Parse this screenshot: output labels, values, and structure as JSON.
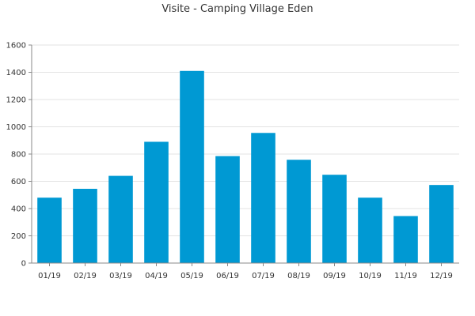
{
  "chart_data": {
    "type": "bar",
    "title": "Visite - Camping Village Eden",
    "categories": [
      "01/19",
      "02/19",
      "03/19",
      "04/19",
      "05/19",
      "06/19",
      "07/19",
      "08/19",
      "09/19",
      "10/19",
      "11/19",
      "12/19"
    ],
    "values": [
      480,
      545,
      640,
      890,
      1410,
      785,
      955,
      758,
      648,
      480,
      345,
      573
    ],
    "xlabel": "",
    "ylabel": "",
    "ylim": [
      0,
      1600
    ],
    "yticks": [
      0,
      200,
      400,
      600,
      800,
      1000,
      1200,
      1400,
      1600
    ],
    "grid": true,
    "legend": "none",
    "bar_color": "#0099d3"
  }
}
